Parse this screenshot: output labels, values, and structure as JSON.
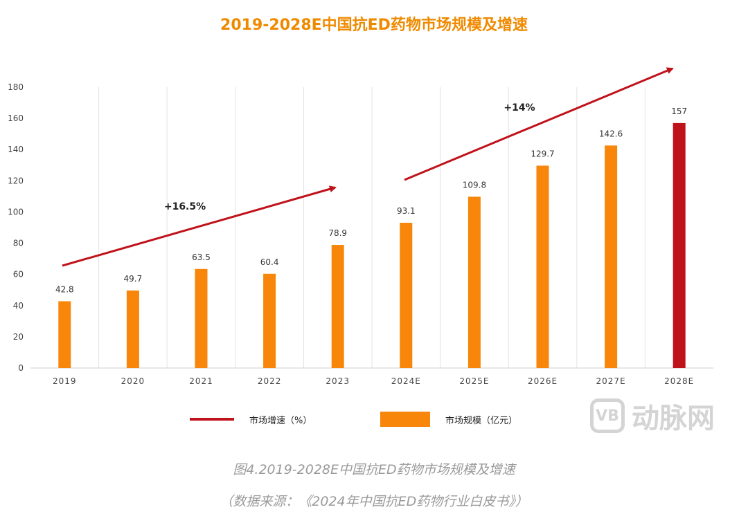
{
  "chart_data": {
    "type": "bar",
    "title": "2019-2028E中国抗ED药物市场规模及增速",
    "categories": [
      "2019",
      "2020",
      "2021",
      "2022",
      "2023",
      "2024E",
      "2025E",
      "2026E",
      "2027E",
      "2028E"
    ],
    "series": [
      {
        "name": "市场规模（亿元）",
        "values": [
          42.8,
          49.7,
          63.5,
          60.4,
          78.9,
          93.1,
          109.8,
          129.7,
          142.6,
          157
        ]
      }
    ],
    "value_labels": [
      "42.8",
      "49.7",
      "63.5",
      "60.4",
      "78.9",
      "93.1",
      "109.8",
      "129.7",
      "142.6",
      "157"
    ],
    "ylim": [
      0,
      180
    ],
    "yticks": [
      0,
      20,
      40,
      60,
      80,
      100,
      120,
      140,
      160,
      180
    ],
    "ytick_labels": [
      "0",
      "20",
      "40",
      "60",
      "80",
      "100",
      "120",
      "140",
      "160",
      "180"
    ],
    "grid": "vertical",
    "bar_color": "#f7860a",
    "highlight_color": "#c0121b",
    "highlight_index": 9,
    "growth_annotations": [
      {
        "label": "+16.5%",
        "from": "2019",
        "to": "2023"
      },
      {
        "label": "+14%",
        "from": "2024E",
        "to": "2028E"
      }
    ],
    "legend": {
      "placement": "bottom",
      "line_label": "市场增速（%）",
      "bar_label": "市场规模（亿元）"
    }
  },
  "watermark": {
    "logo": "VB",
    "text": "动脉网"
  },
  "caption": {
    "figure": "图4.2019-2028E中国抗ED药物市场规模及增速",
    "source": "（数据来源：《2024年中国抗ED药物行业白皮书》）"
  }
}
